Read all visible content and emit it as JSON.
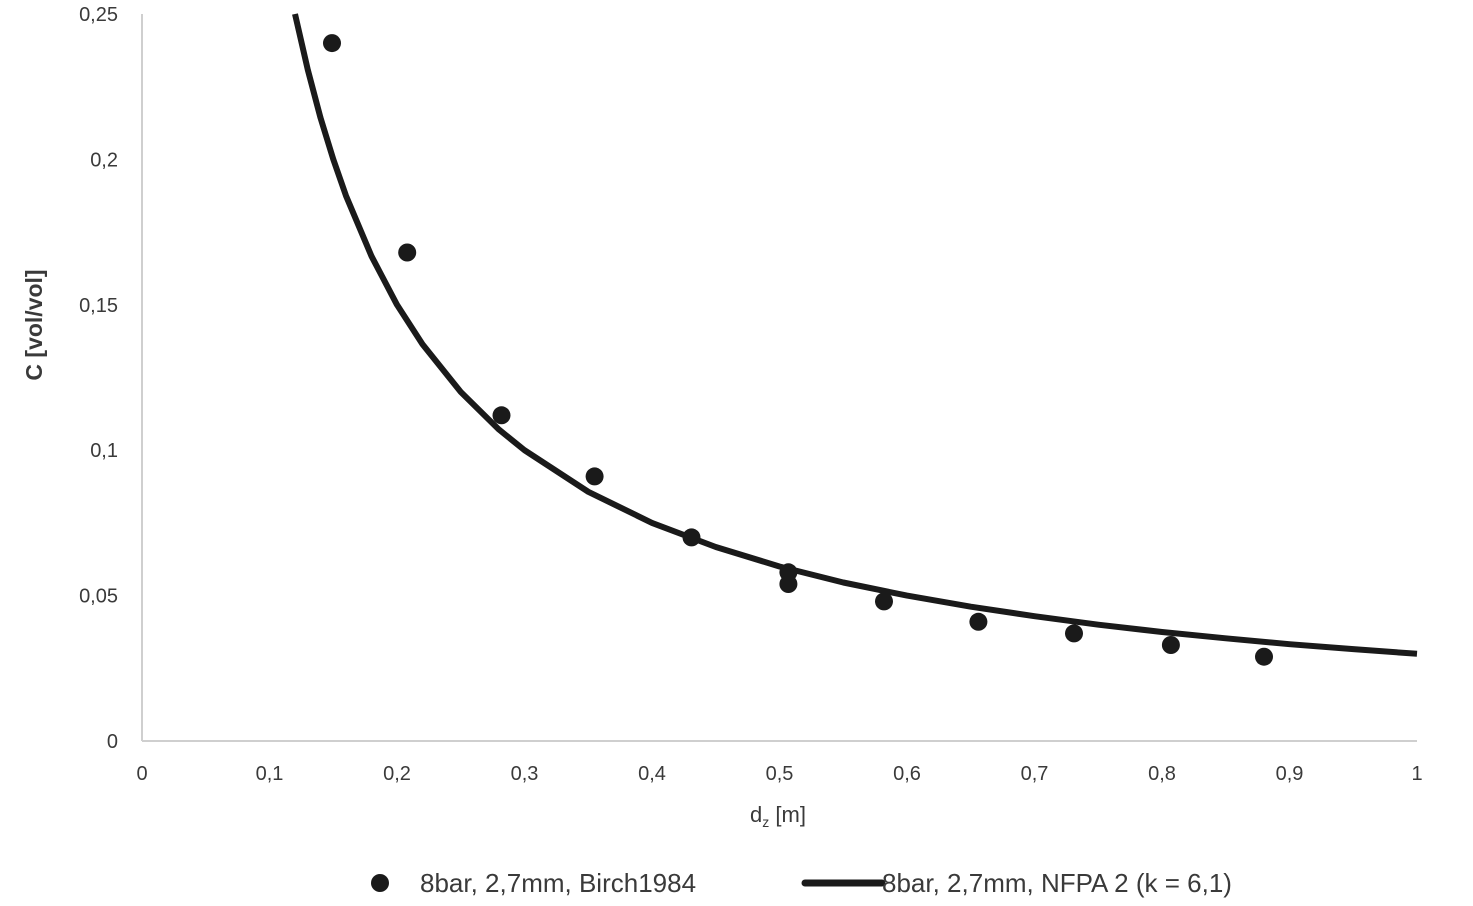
{
  "chart_data": {
    "type": "scatter",
    "title": "",
    "xlabel": "d",
    "xlabel_subscript": "z",
    "xlabel_unit": " [m]",
    "ylabel": "C [vol/vol]",
    "xlim": [
      0,
      1
    ],
    "ylim": [
      0,
      0.25
    ],
    "x_ticks": [
      0,
      0.1,
      0.2,
      0.3,
      0.4,
      0.5,
      0.6,
      0.7,
      0.8,
      0.9,
      1
    ],
    "x_tick_labels": [
      "0",
      "0,1",
      "0,2",
      "0,3",
      "0,4",
      "0,5",
      "0,6",
      "0,7",
      "0,8",
      "0,9",
      "1"
    ],
    "y_ticks": [
      0,
      0.05,
      0.1,
      0.15,
      0.2,
      0.25
    ],
    "y_tick_labels": [
      "0",
      "0,05",
      "0,1",
      "0,15",
      "0,2",
      "0,25"
    ],
    "grid": false,
    "legend_position": "bottom",
    "series": [
      {
        "name": "8bar, 2,7mm, Birch1984",
        "kind": "scatter",
        "color": "#1a1a1a",
        "points": [
          [
            0.149,
            0.24
          ],
          [
            0.208,
            0.168
          ],
          [
            0.282,
            0.112
          ],
          [
            0.355,
            0.091
          ],
          [
            0.431,
            0.07
          ],
          [
            0.507,
            0.058
          ],
          [
            0.507,
            0.054
          ],
          [
            0.582,
            0.048
          ],
          [
            0.656,
            0.041
          ],
          [
            0.731,
            0.037
          ],
          [
            0.807,
            0.033
          ],
          [
            0.88,
            0.029
          ]
        ]
      },
      {
        "name": "8bar, 2,7mm, NFPA 2 (k = 6,1)",
        "kind": "line",
        "color": "#1a1a1a",
        "x": [
          0.12,
          0.13,
          0.14,
          0.15,
          0.16,
          0.18,
          0.2,
          0.22,
          0.25,
          0.28,
          0.3,
          0.35,
          0.4,
          0.45,
          0.5,
          0.55,
          0.6,
          0.65,
          0.7,
          0.75,
          0.8,
          0.85,
          0.9,
          0.95,
          1.0
        ],
        "y": [
          0.25,
          0.2308,
          0.2143,
          0.2,
          0.1875,
          0.1667,
          0.15,
          0.1364,
          0.12,
          0.1071,
          0.1,
          0.0857,
          0.075,
          0.0667,
          0.06,
          0.0545,
          0.05,
          0.0462,
          0.0429,
          0.04,
          0.0375,
          0.0353,
          0.0333,
          0.0316,
          0.03
        ]
      }
    ]
  }
}
